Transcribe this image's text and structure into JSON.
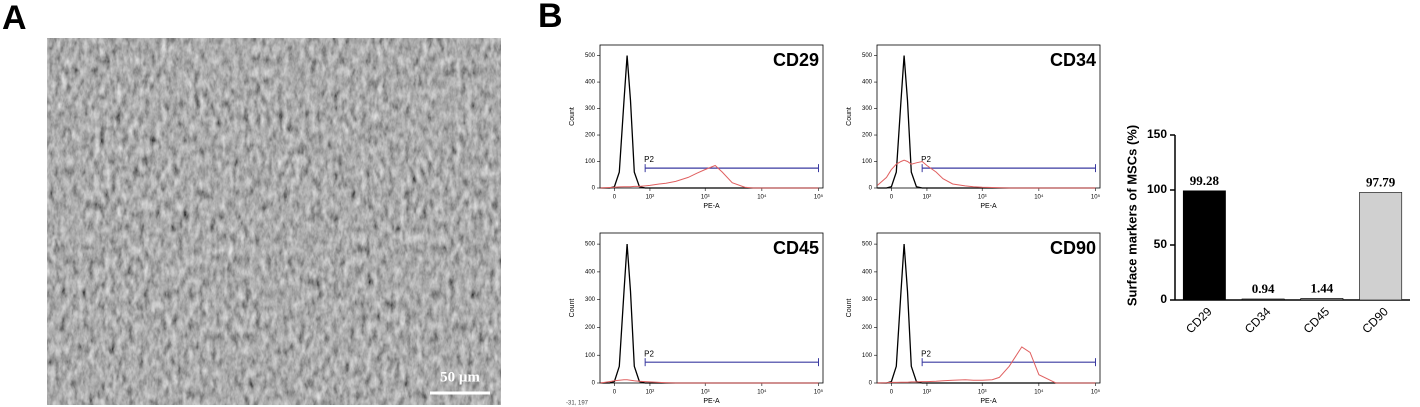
{
  "panels": [
    "A",
    "B"
  ],
  "micrograph": {
    "scale_bar": "50 μm"
  },
  "cursor_readout": "-31, 197",
  "chart_data": [
    {
      "type": "line",
      "title": "CD29",
      "xlabel": "PE-A",
      "ylabel": "Count",
      "xscale": "asinh",
      "xlim": [
        -31,
        120000
      ],
      "ylim": [
        0,
        540
      ],
      "xticks": [
        0,
        {
          "value": 100,
          "label": "10²"
        },
        {
          "value": 1000,
          "label": "10³"
        },
        {
          "value": 10000,
          "label": "10⁴"
        },
        {
          "value": 100000,
          "label": "10⁵"
        }
      ],
      "yticks": [
        0,
        100,
        200,
        300,
        400,
        500
      ],
      "gate": {
        "label": "P2",
        "range": [
          80,
          100000
        ],
        "y": 75,
        "color": "#3a3aa0"
      },
      "x": [
        -30,
        -10,
        0,
        10,
        20,
        27,
        35,
        45,
        60,
        80,
        100,
        150,
        200,
        300,
        500,
        700,
        1000,
        1500,
        2000,
        3000,
        5000,
        7000,
        10000,
        20000,
        50000,
        100000
      ],
      "series": [
        {
          "color": "#000000",
          "values": [
            0,
            0,
            5,
            60,
            330,
            500,
            330,
            60,
            5,
            0,
            0,
            0,
            0,
            0,
            0,
            0,
            0,
            0,
            0,
            0,
            0,
            0,
            0,
            0,
            0,
            0
          ]
        },
        {
          "color": "#e06060",
          "values": [
            0,
            2,
            3,
            4,
            5,
            5,
            5,
            6,
            6,
            8,
            10,
            15,
            18,
            25,
            40,
            55,
            70,
            85,
            60,
            20,
            3,
            0,
            0,
            0,
            0,
            0
          ]
        }
      ]
    },
    {
      "type": "line",
      "title": "CD34",
      "xlabel": "PE-A",
      "ylabel": "Count",
      "xscale": "asinh",
      "xlim": [
        -31,
        120000
      ],
      "ylim": [
        0,
        540
      ],
      "xticks": [
        0,
        {
          "value": 100,
          "label": "10²"
        },
        {
          "value": 1000,
          "label": "10³"
        },
        {
          "value": 10000,
          "label": "10⁴"
        },
        {
          "value": 100000,
          "label": "10⁵"
        }
      ],
      "yticks": [
        0,
        100,
        200,
        300,
        400,
        500
      ],
      "gate": {
        "label": "P2",
        "range": [
          80,
          100000
        ],
        "y": 75,
        "color": "#3a3aa0"
      },
      "x": [
        -30,
        -10,
        0,
        10,
        20,
        27,
        35,
        45,
        60,
        80,
        100,
        150,
        200,
        300,
        500,
        700,
        1000,
        1500,
        2000,
        3000,
        5000,
        7000,
        10000,
        20000,
        50000,
        100000
      ],
      "series": [
        {
          "color": "#000000",
          "values": [
            0,
            0,
            5,
            60,
            330,
            500,
            330,
            60,
            5,
            0,
            0,
            0,
            0,
            0,
            0,
            0,
            0,
            0,
            0,
            0,
            0,
            0,
            0,
            0,
            0,
            0
          ]
        },
        {
          "color": "#e06060",
          "values": [
            10,
            40,
            70,
            90,
            100,
            105,
            100,
            90,
            95,
            100,
            85,
            60,
            35,
            15,
            8,
            5,
            3,
            2,
            1,
            0,
            0,
            0,
            0,
            0,
            0,
            0
          ]
        }
      ]
    },
    {
      "type": "line",
      "title": "CD45",
      "xlabel": "PE-A",
      "ylabel": "Count",
      "xscale": "asinh",
      "xlim": [
        -31,
        120000
      ],
      "ylim": [
        0,
        540
      ],
      "xticks": [
        0,
        {
          "value": 100,
          "label": "10²"
        },
        {
          "value": 1000,
          "label": "10³"
        },
        {
          "value": 10000,
          "label": "10⁴"
        },
        {
          "value": 100000,
          "label": "10⁵"
        }
      ],
      "yticks": [
        0,
        100,
        200,
        300,
        400,
        500
      ],
      "gate": {
        "label": "P2",
        "range": [
          80,
          100000
        ],
        "y": 75,
        "color": "#3a3aa0"
      },
      "x": [
        -30,
        -10,
        0,
        10,
        20,
        27,
        35,
        45,
        60,
        80,
        100,
        150,
        200,
        300,
        500,
        700,
        1000,
        1500,
        2000,
        3000,
        5000,
        7000,
        10000,
        20000,
        50000,
        100000
      ],
      "series": [
        {
          "color": "#000000",
          "values": [
            0,
            0,
            5,
            60,
            330,
            500,
            330,
            60,
            5,
            0,
            0,
            0,
            0,
            0,
            0,
            0,
            0,
            0,
            0,
            0,
            0,
            0,
            0,
            0,
            0,
            0
          ]
        },
        {
          "color": "#e06060",
          "values": [
            0,
            5,
            8,
            10,
            12,
            12,
            10,
            8,
            6,
            5,
            4,
            2,
            1,
            0,
            0,
            0,
            0,
            0,
            0,
            0,
            0,
            0,
            0,
            0,
            0,
            0
          ]
        }
      ]
    },
    {
      "type": "line",
      "title": "CD90",
      "xlabel": "PE-A",
      "ylabel": "Count",
      "xscale": "asinh",
      "xlim": [
        -31,
        120000
      ],
      "ylim": [
        0,
        540
      ],
      "xticks": [
        0,
        {
          "value": 100,
          "label": "10²"
        },
        {
          "value": 1000,
          "label": "10³"
        },
        {
          "value": 10000,
          "label": "10⁴"
        },
        {
          "value": 100000,
          "label": "10⁵"
        }
      ],
      "yticks": [
        0,
        100,
        200,
        300,
        400,
        500
      ],
      "gate": {
        "label": "P2",
        "range": [
          80,
          100000
        ],
        "y": 75,
        "color": "#3a3aa0"
      },
      "x": [
        -30,
        -10,
        0,
        10,
        20,
        27,
        35,
        45,
        60,
        80,
        100,
        150,
        200,
        300,
        500,
        700,
        1000,
        1500,
        2000,
        3000,
        5000,
        7000,
        10000,
        20000,
        50000,
        100000
      ],
      "series": [
        {
          "color": "#000000",
          "values": [
            0,
            0,
            5,
            60,
            330,
            500,
            330,
            60,
            5,
            0,
            0,
            0,
            0,
            0,
            0,
            0,
            0,
            0,
            0,
            0,
            0,
            0,
            0,
            0,
            0,
            0
          ]
        },
        {
          "color": "#e06060",
          "values": [
            0,
            1,
            2,
            2,
            3,
            3,
            3,
            4,
            4,
            5,
            5,
            6,
            8,
            10,
            12,
            10,
            10,
            12,
            20,
            60,
            130,
            110,
            30,
            0,
            0,
            0
          ]
        }
      ]
    },
    {
      "type": "bar",
      "ylabel": "Surface markers of MSCs (%)",
      "categories": [
        "CD29",
        "CD34",
        "CD45",
        "CD90"
      ],
      "values": [
        99.28,
        0.94,
        1.44,
        97.79
      ],
      "colors": [
        "#000000",
        "#555555",
        "#888888",
        "#d0d0d0"
      ],
      "ylim": [
        0,
        150
      ],
      "yticks": [
        0,
        50,
        100,
        150
      ]
    }
  ]
}
